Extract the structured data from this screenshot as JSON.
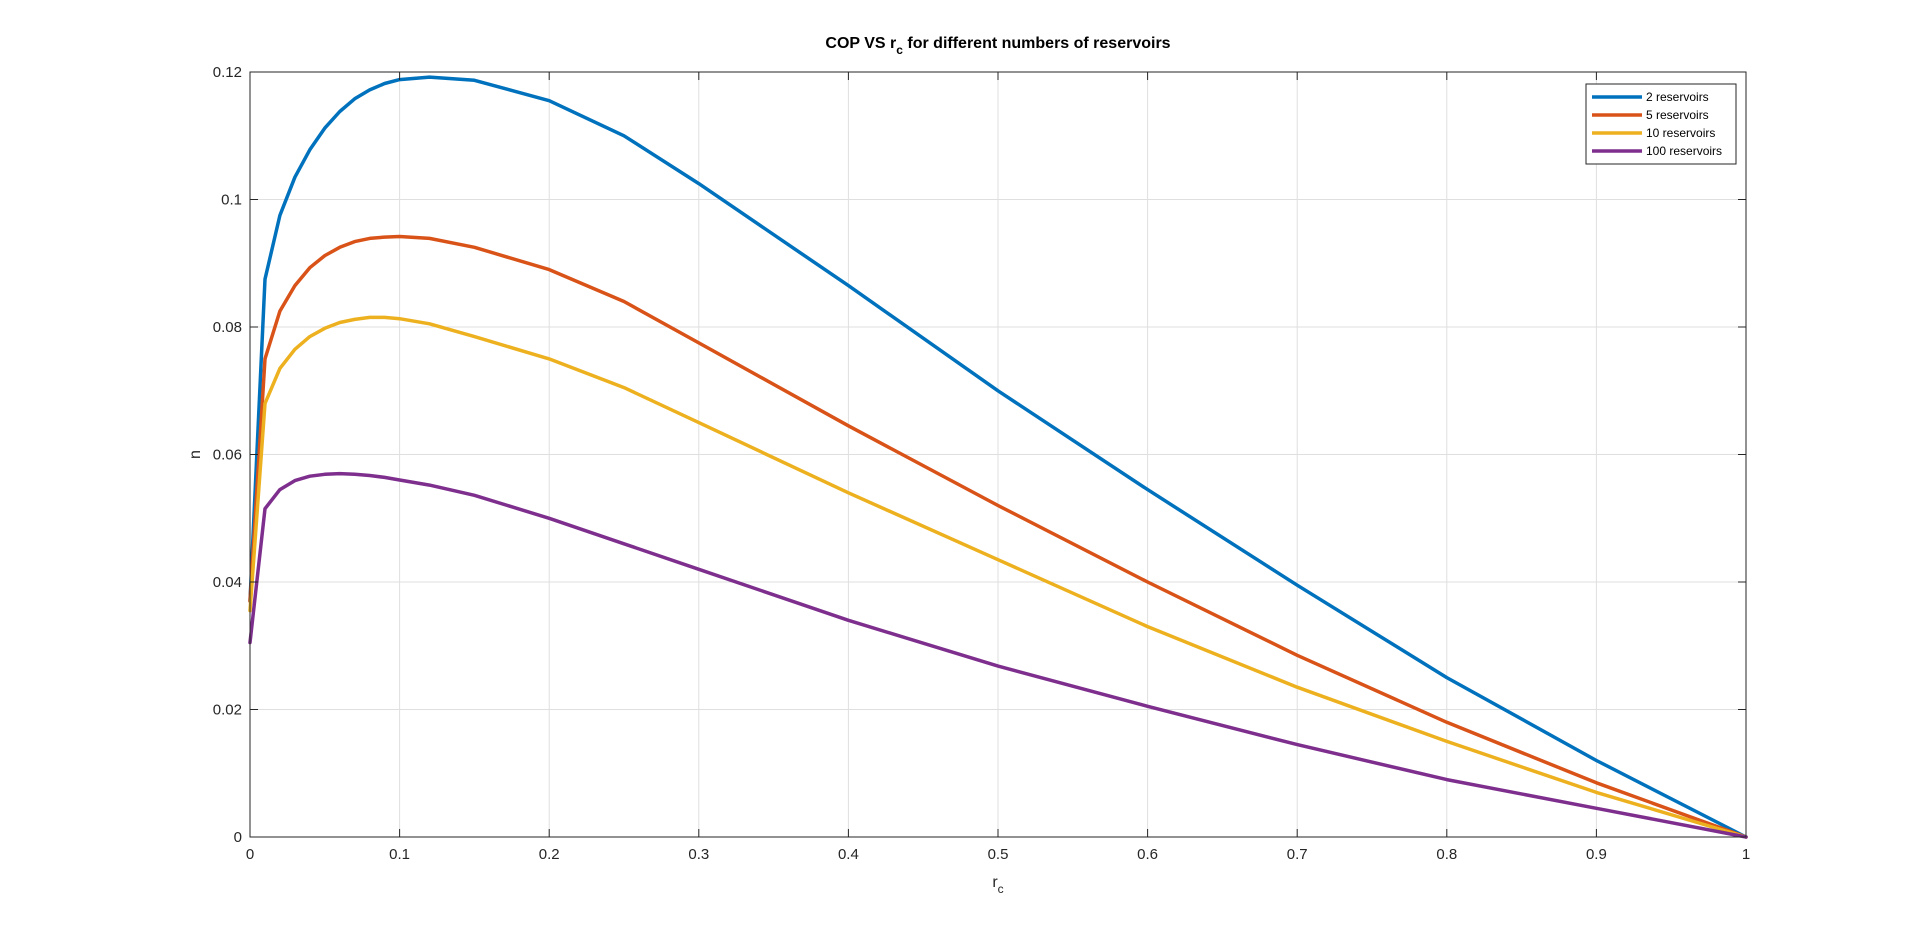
{
  "chart_data": {
    "type": "line",
    "title": {
      "main": "COP VS r",
      "sub": "c",
      "rest": " for different numbers of reservoirs"
    },
    "xlabel": {
      "main": "r",
      "sub": "c"
    },
    "ylabel": "n",
    "xlim": [
      0,
      1
    ],
    "ylim": [
      0,
      0.12
    ],
    "xticks": [
      0,
      0.1,
      0.2,
      0.3,
      0.4,
      0.5,
      0.6,
      0.7,
      0.8,
      0.9,
      1
    ],
    "xtick_labels": [
      "0",
      "0.1",
      "0.2",
      "0.3",
      "0.4",
      "0.5",
      "0.6",
      "0.7",
      "0.8",
      "0.9",
      "1"
    ],
    "yticks": [
      0,
      0.02,
      0.04,
      0.06,
      0.08,
      0.1,
      0.12
    ],
    "ytick_labels": [
      "0",
      "0.02",
      "0.04",
      "0.06",
      "0.08",
      "0.1",
      "0.12"
    ],
    "grid": true,
    "legend_position": "top-right",
    "series": [
      {
        "name": "2 reservoirs",
        "color": "#0072BD",
        "x": [
          0,
          0.01,
          0.02,
          0.03,
          0.04,
          0.05,
          0.06,
          0.07,
          0.08,
          0.09,
          0.1,
          0.12,
          0.15,
          0.2,
          0.25,
          0.3,
          0.4,
          0.5,
          0.6,
          0.7,
          0.8,
          0.9,
          1
        ],
        "y": [
          0.037,
          0.0875,
          0.0975,
          0.1035,
          0.1078,
          0.1112,
          0.1138,
          0.1158,
          0.1172,
          0.1182,
          0.1188,
          0.1192,
          0.1187,
          0.1155,
          0.11,
          0.1025,
          0.0865,
          0.07,
          0.0545,
          0.0395,
          0.025,
          0.012,
          0.0
        ]
      },
      {
        "name": "5 reservoirs",
        "color": "#D95319",
        "x": [
          0,
          0.01,
          0.02,
          0.03,
          0.04,
          0.05,
          0.06,
          0.07,
          0.08,
          0.09,
          0.1,
          0.12,
          0.15,
          0.2,
          0.25,
          0.3,
          0.4,
          0.5,
          0.6,
          0.7,
          0.8,
          0.9,
          1
        ],
        "y": [
          0.037,
          0.075,
          0.0825,
          0.0865,
          0.0893,
          0.0912,
          0.0925,
          0.0934,
          0.0939,
          0.0941,
          0.0942,
          0.0939,
          0.0925,
          0.089,
          0.084,
          0.0775,
          0.0645,
          0.052,
          0.04,
          0.0285,
          0.018,
          0.0085,
          0.0
        ]
      },
      {
        "name": "10 reservoirs",
        "color": "#EDB120",
        "x": [
          0,
          0.01,
          0.02,
          0.03,
          0.04,
          0.05,
          0.06,
          0.07,
          0.08,
          0.09,
          0.1,
          0.12,
          0.15,
          0.2,
          0.25,
          0.3,
          0.4,
          0.5,
          0.6,
          0.7,
          0.8,
          0.9,
          1
        ],
        "y": [
          0.0355,
          0.068,
          0.0735,
          0.0765,
          0.0785,
          0.0798,
          0.0807,
          0.0812,
          0.0815,
          0.0815,
          0.0813,
          0.0805,
          0.0785,
          0.075,
          0.0705,
          0.065,
          0.054,
          0.0435,
          0.033,
          0.0235,
          0.015,
          0.007,
          0.0
        ]
      },
      {
        "name": "100 reservoirs",
        "color": "#7E2F8E",
        "x": [
          0,
          0.01,
          0.02,
          0.03,
          0.04,
          0.05,
          0.06,
          0.07,
          0.08,
          0.09,
          0.1,
          0.12,
          0.15,
          0.2,
          0.25,
          0.3,
          0.4,
          0.5,
          0.6,
          0.7,
          0.8,
          0.9,
          1
        ],
        "y": [
          0.0305,
          0.0515,
          0.0545,
          0.0559,
          0.0566,
          0.0569,
          0.057,
          0.0569,
          0.0567,
          0.0564,
          0.056,
          0.0552,
          0.0536,
          0.05,
          0.046,
          0.042,
          0.034,
          0.0268,
          0.0205,
          0.0145,
          0.009,
          0.0045,
          0.0
        ]
      }
    ]
  }
}
